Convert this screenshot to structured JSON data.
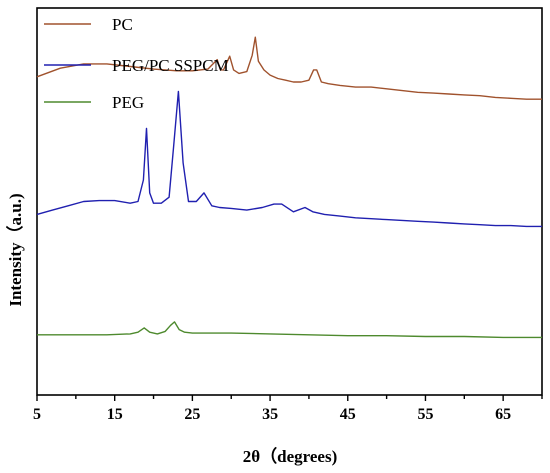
{
  "chart_data": {
    "type": "line",
    "xlabel": "2θ（degrees)",
    "ylabel": "Intensity（a.u.)",
    "xlim": [
      5,
      70
    ],
    "x_ticks": [
      "5",
      "15",
      "25",
      "35",
      "45",
      "55",
      "65"
    ],
    "y_ticks_labeled": false,
    "grid": false,
    "legend": "top-left",
    "colors": {
      "PC": "#a0522d",
      "PEG/PC SSPCM": "#2020b0",
      "PEG": "#4e8a2e"
    },
    "series": [
      {
        "name": "PC",
        "x": [
          5,
          8,
          11,
          14,
          17,
          20,
          23,
          25,
          27,
          28.2,
          28.6,
          29,
          29.8,
          30.3,
          31,
          32,
          32.7,
          33.1,
          33.5,
          34.2,
          35,
          36,
          37,
          38,
          39,
          40,
          40.6,
          41,
          41.6,
          42.5,
          44,
          46,
          48,
          50,
          52,
          54,
          56,
          58,
          60,
          62,
          64,
          66,
          68,
          70
        ],
        "y": [
          92,
          93,
          93.5,
          93.5,
          93.2,
          92.9,
          92.7,
          92.7,
          92.9,
          94,
          92.8,
          92.8,
          94.4,
          92.8,
          92.4,
          92.6,
          94.5,
          96.6,
          93.8,
          92.8,
          92.2,
          91.8,
          91.6,
          91.4,
          91.4,
          91.6,
          92.8,
          92.8,
          91.4,
          91.2,
          91,
          90.8,
          90.8,
          90.6,
          90.4,
          90.2,
          90.1,
          90,
          89.9,
          89.8,
          89.6,
          89.5,
          89.4,
          89.4
        ]
      },
      {
        "name": "PEG/PC SSPCM",
        "x": [
          5,
          7,
          9,
          11,
          13,
          15,
          17,
          18,
          18.7,
          19.1,
          19.5,
          20,
          21,
          22,
          22.6,
          23.2,
          23.8,
          24.5,
          25.5,
          26.5,
          27.5,
          28.5,
          30,
          32,
          34,
          35.5,
          36.5,
          38,
          39.5,
          40.5,
          42,
          44,
          46,
          48,
          50,
          52,
          54,
          56,
          58,
          60,
          62,
          64,
          66,
          68,
          70
        ],
        "y": [
          76,
          76.5,
          77,
          77.5,
          77.6,
          77.6,
          77.3,
          77.5,
          80,
          86,
          78.5,
          77.3,
          77.3,
          78,
          84,
          90.3,
          82,
          77.5,
          77.5,
          78.5,
          77,
          76.8,
          76.7,
          76.5,
          76.8,
          77.2,
          77.2,
          76.3,
          76.8,
          76.3,
          76,
          75.8,
          75.6,
          75.5,
          75.4,
          75.3,
          75.2,
          75.1,
          75,
          74.9,
          74.8,
          74.7,
          74.7,
          74.6,
          74.6
        ]
      },
      {
        "name": "PEG",
        "x": [
          5,
          8,
          11,
          14,
          17,
          18,
          18.8,
          19.5,
          20.5,
          21.5,
          22.2,
          22.7,
          23.3,
          24,
          25,
          27,
          30,
          35,
          40,
          45,
          50,
          55,
          60,
          65,
          70
        ],
        "y": [
          62,
          62,
          62,
          62,
          62.1,
          62.3,
          62.8,
          62.3,
          62.1,
          62.4,
          63.1,
          63.5,
          62.6,
          62.3,
          62.2,
          62.2,
          62.2,
          62.1,
          62,
          61.9,
          61.9,
          61.8,
          61.8,
          61.7,
          61.7
        ]
      }
    ]
  }
}
